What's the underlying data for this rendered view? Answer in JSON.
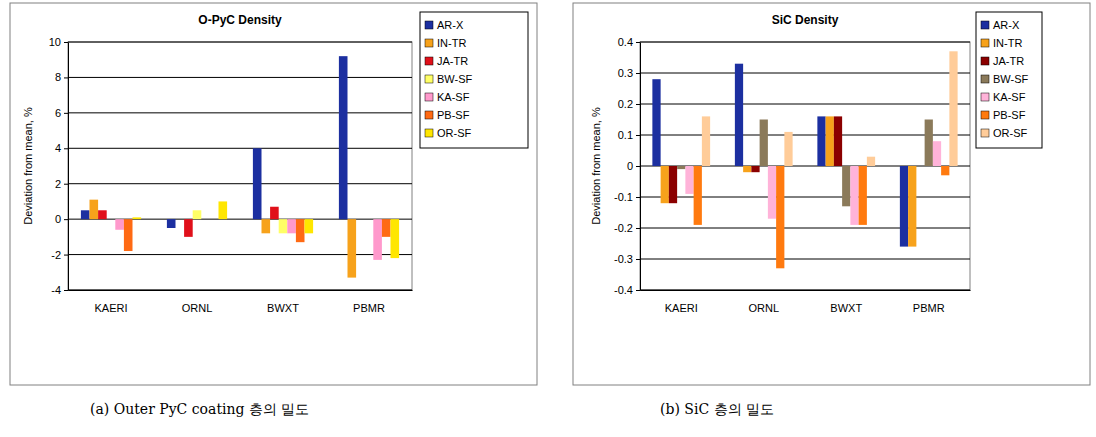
{
  "chart_data": [
    {
      "type": "bar",
      "title": "O-PyC Density",
      "y_label": "Deviation from mean, %",
      "caption": "(a) Outer PyC coating 층의 밀도",
      "categories": [
        "KAERI",
        "ORNL",
        "BWXT",
        "PBMR"
      ],
      "series": [
        {
          "name": "AR-X",
          "color": "#1c2fa0",
          "values": [
            0.5,
            -0.5,
            4.0,
            9.2
          ]
        },
        {
          "name": "IN-TR",
          "color": "#f7a21b",
          "values": [
            1.1,
            null,
            -0.8,
            -3.3
          ]
        },
        {
          "name": "JA-TR",
          "color": "#e0101a",
          "values": [
            0.5,
            -1.0,
            0.7,
            null
          ]
        },
        {
          "name": "BW-SF",
          "color": "#ffff66",
          "values": [
            0.0,
            0.5,
            -0.8,
            null
          ]
        },
        {
          "name": "KA-SF",
          "color": "#ff99cc",
          "values": [
            -0.6,
            null,
            -0.8,
            -2.3
          ]
        },
        {
          "name": "PB-SF",
          "color": "#ff6a13",
          "values": [
            -1.8,
            null,
            -1.3,
            -1.0
          ]
        },
        {
          "name": "OR-SF",
          "color": "#ffe600",
          "values": [
            0.1,
            1.0,
            -0.8,
            -2.2
          ]
        }
      ],
      "ylim": [
        -4,
        10
      ],
      "yticks": [
        -4,
        -2,
        0,
        2,
        4,
        6,
        8,
        10
      ],
      "grid": true,
      "legend": "right"
    },
    {
      "type": "bar",
      "title": "SiC Density",
      "y_label": "Deviation from mean, %",
      "caption": "(b) SiC 층의 밀도",
      "categories": [
        "KAERI",
        "ORNL",
        "BWXT",
        "PBMR"
      ],
      "series": [
        {
          "name": "AR-X",
          "color": "#1c2fa0",
          "values": [
            0.28,
            0.33,
            0.16,
            -0.26
          ]
        },
        {
          "name": "IN-TR",
          "color": "#f7a21b",
          "values": [
            -0.12,
            -0.02,
            0.16,
            -0.26
          ]
        },
        {
          "name": "JA-TR",
          "color": "#8b0000",
          "values": [
            -0.12,
            -0.02,
            0.16,
            null
          ]
        },
        {
          "name": "BW-SF",
          "color": "#8b7a5a",
          "values": [
            -0.01,
            0.15,
            -0.13,
            0.15
          ]
        },
        {
          "name": "KA-SF",
          "color": "#ffb3d9",
          "values": [
            -0.09,
            -0.17,
            -0.19,
            0.08
          ]
        },
        {
          "name": "PB-SF",
          "color": "#ff7a0f",
          "values": [
            -0.19,
            -0.33,
            -0.19,
            -0.03
          ]
        },
        {
          "name": "OR-SF",
          "color": "#ffcc99",
          "values": [
            0.16,
            0.11,
            0.03,
            0.37
          ]
        }
      ],
      "ylim": [
        -0.4,
        0.4
      ],
      "yticks": [
        -0.4,
        -0.3,
        -0.2,
        -0.1,
        0,
        0.1,
        0.2,
        0.3,
        0.4
      ],
      "grid": true,
      "legend": "right"
    }
  ]
}
